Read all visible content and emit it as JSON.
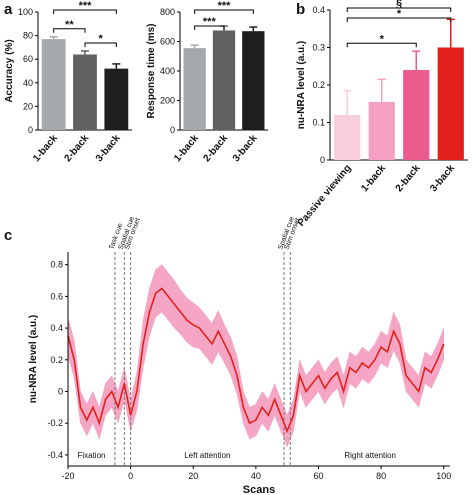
{
  "panel_labels": [
    "a",
    "b",
    "c"
  ],
  "chart_data": [
    {
      "type": "bar",
      "ylabel": "Accuracy (%)",
      "categories": [
        "1-back",
        "2-back",
        "3-back"
      ],
      "values": [
        77,
        64,
        52
      ],
      "errors": [
        2,
        3,
        4
      ],
      "colors": [
        "#a6a9ac",
        "#5f6163",
        "#1e1e1e"
      ],
      "ylim": [
        0,
        100
      ],
      "yticks": [
        0,
        20,
        40,
        60,
        80,
        100
      ],
      "annotations": [
        {
          "from": "1-back",
          "to": "3-back",
          "label": "***"
        },
        {
          "from": "1-back",
          "to": "2-back",
          "label": "**"
        },
        {
          "from": "2-back",
          "to": "3-back",
          "label": "*"
        }
      ]
    },
    {
      "type": "bar",
      "ylabel": "Response time (ms)",
      "categories": [
        "1-back",
        "2-back",
        "3-back"
      ],
      "values": [
        555,
        675,
        670
      ],
      "errors": [
        20,
        30,
        28
      ],
      "colors": [
        "#a6a9ac",
        "#5f6163",
        "#1e1e1e"
      ],
      "ylim": [
        0,
        800
      ],
      "yticks": [
        0,
        200,
        400,
        600,
        800
      ],
      "annotations": [
        {
          "from": "1-back",
          "to": "3-back",
          "label": "***"
        },
        {
          "from": "1-back",
          "to": "2-back",
          "label": "***"
        }
      ]
    },
    {
      "type": "bar",
      "ylabel": "nu-NRA level (a.u.)",
      "categories": [
        "Passive viewing",
        "1-back",
        "2-back",
        "3-back"
      ],
      "values": [
        0.12,
        0.155,
        0.24,
        0.3
      ],
      "errors": [
        0.065,
        0.06,
        0.05,
        0.075
      ],
      "colors": [
        "#f8cddc",
        "#f4a0c2",
        "#ec5b8e",
        "#e3211c"
      ],
      "ylim": [
        0,
        0.4
      ],
      "yticks": [
        0,
        0.1,
        0.2,
        0.3,
        0.4
      ],
      "annotations": [
        {
          "from": "Passive viewing",
          "to": "3-back",
          "label": "§"
        },
        {
          "from": "Passive viewing",
          "to": "3-back",
          "label": "*"
        },
        {
          "from": "Passive viewing",
          "to": "2-back",
          "label": "*"
        }
      ]
    },
    {
      "type": "line",
      "xlabel": "Scans",
      "ylabel": "nu-NRA level (a.u.)",
      "xlim": [
        -20,
        102
      ],
      "ylim": [
        -0.47,
        0.88
      ],
      "xticks": [
        -20,
        0,
        20,
        40,
        60,
        80,
        100
      ],
      "yticks": [
        -0.4,
        -0.2,
        0,
        0.2,
        0.4,
        0.6,
        0.8
      ],
      "x": [
        -20,
        -18,
        -16,
        -14,
        -12,
        -10,
        -8,
        -6,
        -4,
        -2,
        0,
        2,
        4,
        6,
        8,
        10,
        12,
        14,
        16,
        18,
        20,
        22,
        24,
        26,
        28,
        30,
        32,
        34,
        36,
        38,
        40,
        42,
        44,
        46,
        48,
        50,
        52,
        54,
        56,
        58,
        60,
        62,
        64,
        66,
        68,
        70,
        72,
        74,
        76,
        78,
        80,
        82,
        84,
        86,
        88,
        90,
        92,
        94,
        96,
        98,
        100
      ],
      "series": [
        {
          "color": "#e3211c",
          "band_color": "#f4a6c4",
          "values": [
            0.35,
            0.2,
            -0.1,
            -0.18,
            -0.1,
            -0.2,
            -0.05,
            0.0,
            -0.1,
            0.05,
            -0.15,
            0.0,
            0.3,
            0.5,
            0.62,
            0.65,
            0.6,
            0.55,
            0.5,
            0.45,
            0.42,
            0.4,
            0.35,
            0.3,
            0.38,
            0.3,
            0.22,
            0.1,
            -0.1,
            -0.2,
            -0.18,
            -0.1,
            -0.15,
            -0.05,
            -0.15,
            -0.25,
            -0.15,
            0.1,
            0.0,
            0.05,
            0.1,
            0.02,
            0.08,
            0.12,
            0.0,
            0.15,
            0.12,
            0.18,
            0.15,
            0.2,
            0.28,
            0.25,
            0.38,
            0.3,
            0.1,
            0.05,
            0.0,
            0.15,
            0.12,
            0.2,
            0.3
          ],
          "errors": [
            0.12,
            0.12,
            0.1,
            0.1,
            0.1,
            0.1,
            0.1,
            0.1,
            0.1,
            0.1,
            0.1,
            0.12,
            0.15,
            0.15,
            0.15,
            0.15,
            0.15,
            0.15,
            0.14,
            0.14,
            0.14,
            0.13,
            0.13,
            0.13,
            0.13,
            0.12,
            0.12,
            0.12,
            0.1,
            0.1,
            0.1,
            0.1,
            0.1,
            0.1,
            0.1,
            0.1,
            0.1,
            0.1,
            0.1,
            0.1,
            0.1,
            0.1,
            0.1,
            0.1,
            0.1,
            0.1,
            0.1,
            0.1,
            0.1,
            0.1,
            0.1,
            0.1,
            0.12,
            0.12,
            0.1,
            0.1,
            0.1,
            0.1,
            0.1,
            0.1,
            0.1
          ]
        }
      ],
      "events": [
        {
          "x": -5,
          "label": "Task cue"
        },
        {
          "x": -2,
          "label": "Spatial cue"
        },
        {
          "x": 0,
          "label": "Stim onset"
        },
        {
          "x": 49,
          "label": "Spatial cue"
        },
        {
          "x": 51,
          "label": "Stim onset"
        }
      ],
      "regions": [
        "Fixation",
        "Left attention",
        "Right attention"
      ]
    }
  ]
}
